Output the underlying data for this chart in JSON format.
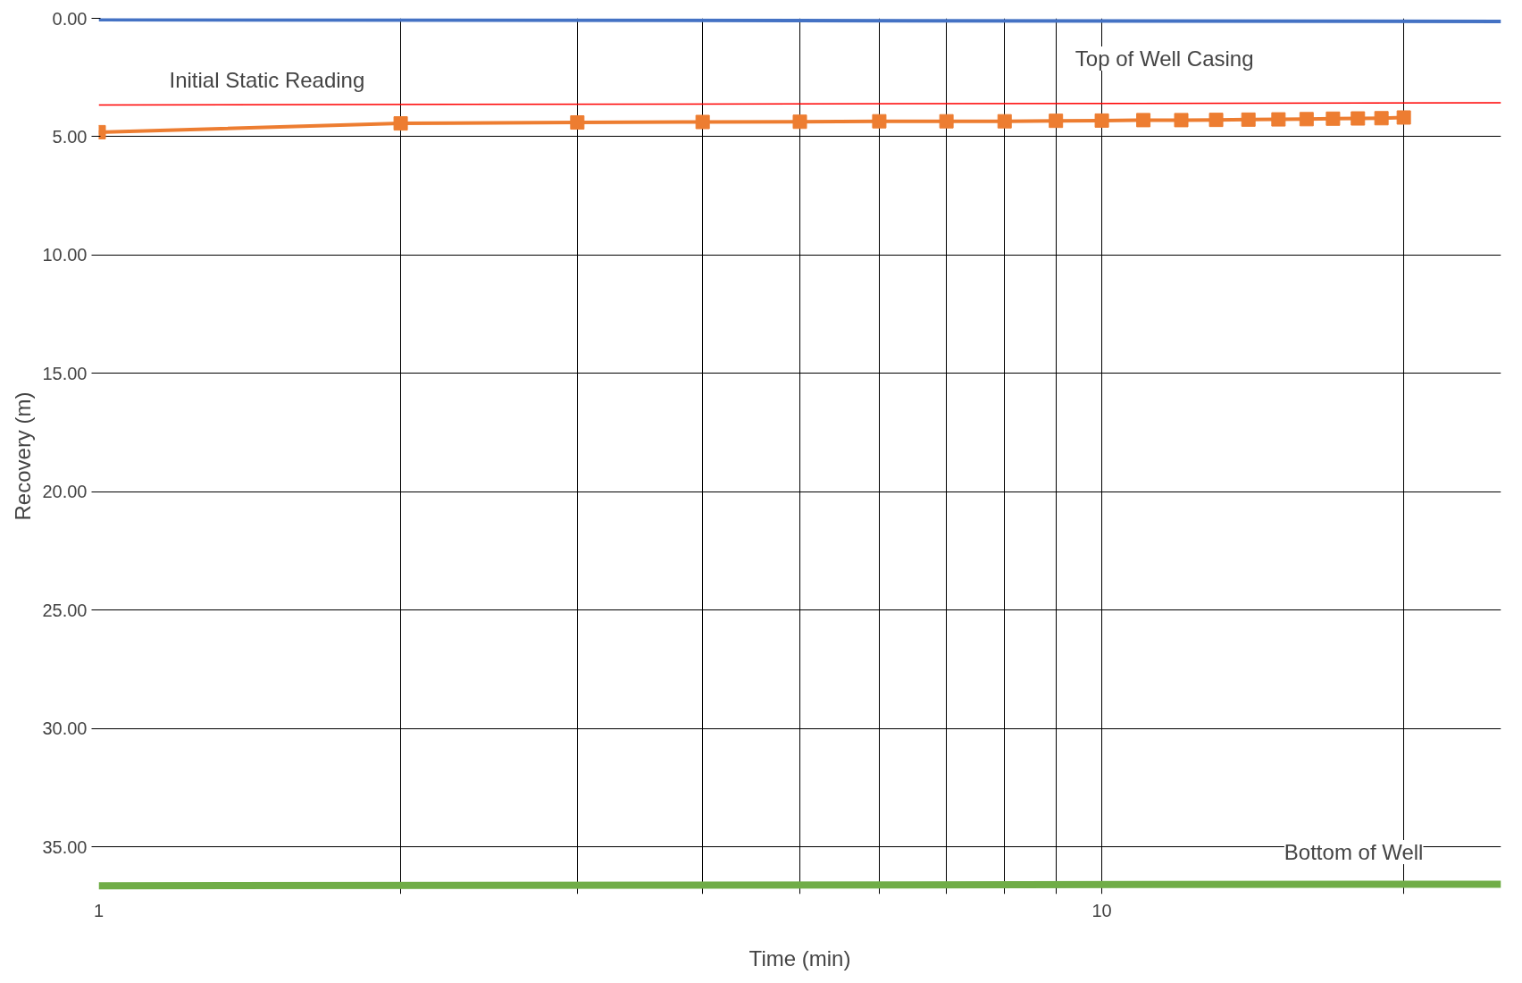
{
  "chart_data": {
    "type": "line",
    "xlabel": "Time (min)",
    "ylabel": "Recovery (m)",
    "log": "x",
    "xlim": [
      1,
      25
    ],
    "xticks": [
      1,
      {
        "value": 2,
        "label": null
      },
      {
        "value": 3,
        "label": null
      },
      {
        "value": 4,
        "label": null
      },
      {
        "value": 5,
        "label": null
      },
      {
        "value": 6,
        "label": null
      },
      {
        "value": 7,
        "label": null
      },
      {
        "value": 8,
        "label": null
      },
      {
        "value": 9,
        "label": null
      },
      10,
      {
        "value": 20,
        "label": null
      }
    ],
    "ylim": [
      37,
      0
    ],
    "yticks": [
      {
        "value": 0,
        "label": "0.00"
      },
      {
        "value": 5,
        "label": "5.00"
      },
      {
        "value": 10,
        "label": "10.00"
      },
      {
        "value": 15,
        "label": "15.00"
      },
      {
        "value": 20,
        "label": "20.00"
      },
      {
        "value": 25,
        "label": "25.00"
      },
      {
        "value": 30,
        "label": "30.00"
      },
      {
        "value": 35,
        "label": "35.00"
      }
    ],
    "grid": true,
    "series": [
      {
        "name": "Top of Well Casing",
        "color": "#4472c4",
        "x": [
          1,
          25
        ],
        "values": [
          0.06,
          0.13
        ],
        "marker": "none"
      },
      {
        "name": "Initial Static Reading",
        "color": "#ff0000",
        "x": [
          1,
          25
        ],
        "values": [
          3.66,
          3.57
        ],
        "marker": "none"
      },
      {
        "name": "Bottom of Well",
        "color": "#70ad47",
        "x": [
          1,
          25
        ],
        "values": [
          36.65,
          36.58
        ],
        "marker": "none"
      },
      {
        "color": "#ed7d31",
        "x": [
          1,
          2,
          3,
          4,
          5,
          6,
          7,
          8,
          9,
          10,
          11,
          12,
          13,
          14,
          15,
          16,
          17,
          18,
          19,
          20
        ],
        "values": [
          4.81,
          4.44,
          4.4,
          4.38,
          4.37,
          4.35,
          4.35,
          4.35,
          4.33,
          4.32,
          4.3,
          4.3,
          4.29,
          4.28,
          4.27,
          4.26,
          4.24,
          4.23,
          4.22,
          4.19
        ],
        "marker": "square"
      }
    ]
  }
}
